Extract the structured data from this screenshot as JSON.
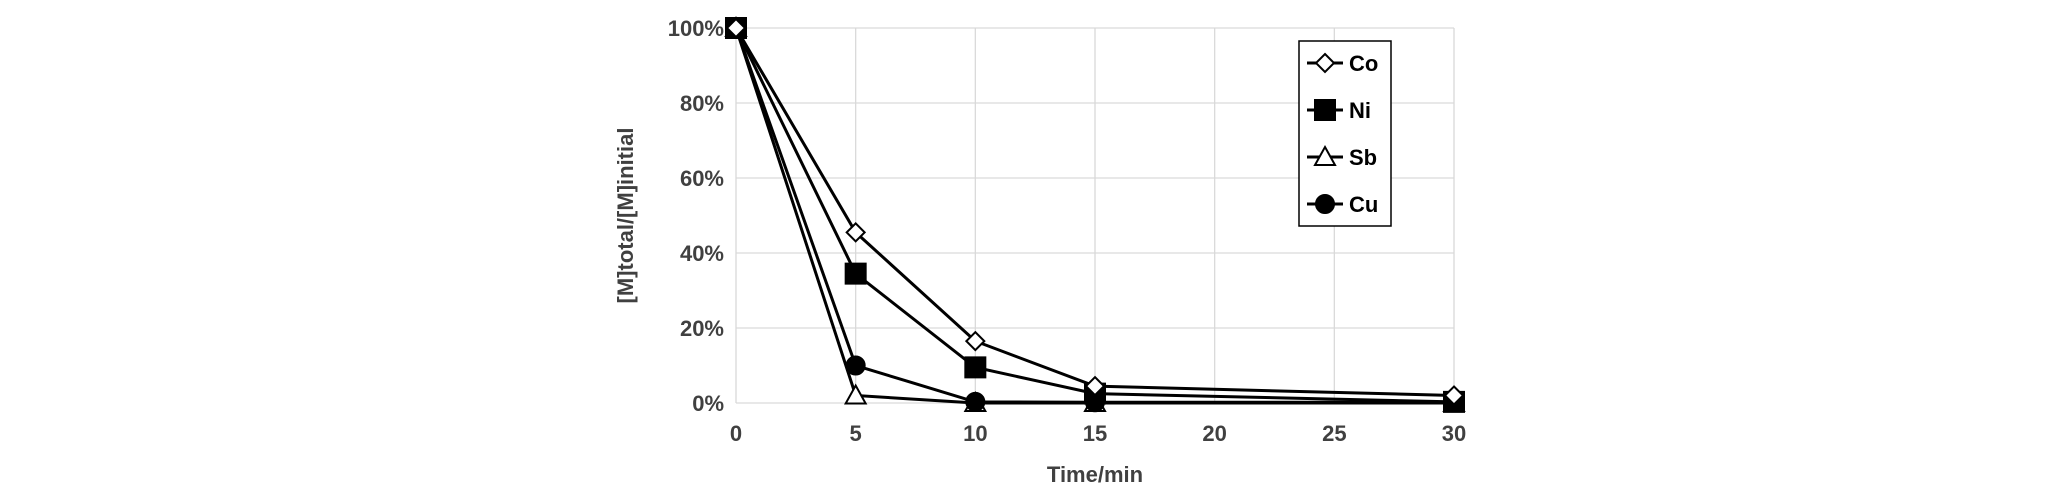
{
  "chart_data": {
    "type": "line",
    "xlabel": "Time/min",
    "ylabel": "[M]total/[M]initial",
    "x_ticks": [
      "0",
      "5",
      "10",
      "15",
      "20",
      "25",
      "30"
    ],
    "y_ticks": [
      "0%",
      "20%",
      "40%",
      "60%",
      "80%",
      "100%"
    ],
    "xlim": [
      0,
      30
    ],
    "ylim": [
      0,
      100
    ],
    "grid": true,
    "legend_position": "top-right",
    "series": [
      {
        "name": "Co",
        "marker": "diamond-open",
        "x": [
          0,
          5,
          10,
          15,
          30
        ],
        "y": [
          100,
          45.5,
          16.5,
          4.5,
          2
        ]
      },
      {
        "name": "Ni",
        "marker": "square-filled",
        "x": [
          0,
          5,
          10,
          15,
          30
        ],
        "y": [
          100,
          34.5,
          9.5,
          2.5,
          0.3
        ]
      },
      {
        "name": "Sb",
        "marker": "triangle-open",
        "x": [
          0,
          5,
          10,
          15,
          30
        ],
        "y": [
          100,
          2,
          0,
          0,
          0
        ]
      },
      {
        "name": "Cu",
        "marker": "circle-filled",
        "x": [
          0,
          5,
          10,
          15,
          30
        ],
        "y": [
          100,
          10,
          0.3,
          0.2,
          0.2
        ]
      }
    ]
  }
}
